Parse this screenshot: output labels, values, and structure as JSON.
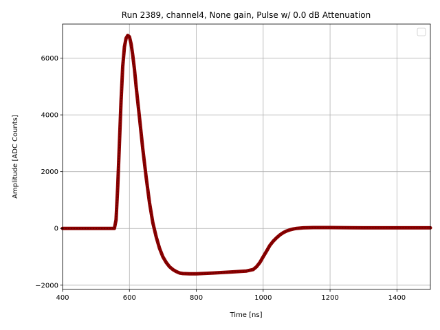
{
  "chart_data": {
    "type": "line",
    "title": "Run 2389, channel4, None gain, Pulse w/ 0.0 dB Attenuation",
    "xlabel": "Time [ns]",
    "ylabel": "Amplitude [ADC Counts]",
    "xlim": [
      400,
      1500
    ],
    "ylim": [
      -2150,
      7200
    ],
    "xticks": [
      400,
      600,
      800,
      1000,
      1200,
      1400
    ],
    "yticks": [
      -2000,
      0,
      2000,
      4000,
      6000
    ],
    "grid": true,
    "legend": {
      "placement": "top-right",
      "entries": []
    },
    "series": [
      {
        "color": "#8b0000",
        "x": [
          400,
          450,
          500,
          540,
          555,
          560,
          565,
          570,
          575,
          580,
          585,
          590,
          595,
          600,
          605,
          610,
          615,
          620,
          630,
          640,
          650,
          660,
          670,
          680,
          690,
          700,
          710,
          720,
          730,
          740,
          750,
          760,
          780,
          800,
          850,
          900,
          950,
          970,
          980,
          990,
          1000,
          1010,
          1020,
          1030,
          1040,
          1050,
          1060,
          1070,
          1080,
          1090,
          1100,
          1120,
          1150,
          1200,
          1300,
          1400,
          1500
        ],
        "y": [
          0,
          0,
          0,
          0,
          0,
          300,
          1500,
          3000,
          4500,
          5700,
          6400,
          6700,
          6800,
          6750,
          6500,
          6100,
          5600,
          5000,
          3900,
          2800,
          1800,
          900,
          200,
          -300,
          -700,
          -1000,
          -1200,
          -1350,
          -1450,
          -1520,
          -1570,
          -1590,
          -1600,
          -1600,
          -1570,
          -1540,
          -1500,
          -1450,
          -1350,
          -1200,
          -1000,
          -800,
          -600,
          -450,
          -330,
          -230,
          -150,
          -90,
          -50,
          -20,
          0,
          20,
          30,
          30,
          20,
          20,
          20
        ]
      }
    ]
  }
}
